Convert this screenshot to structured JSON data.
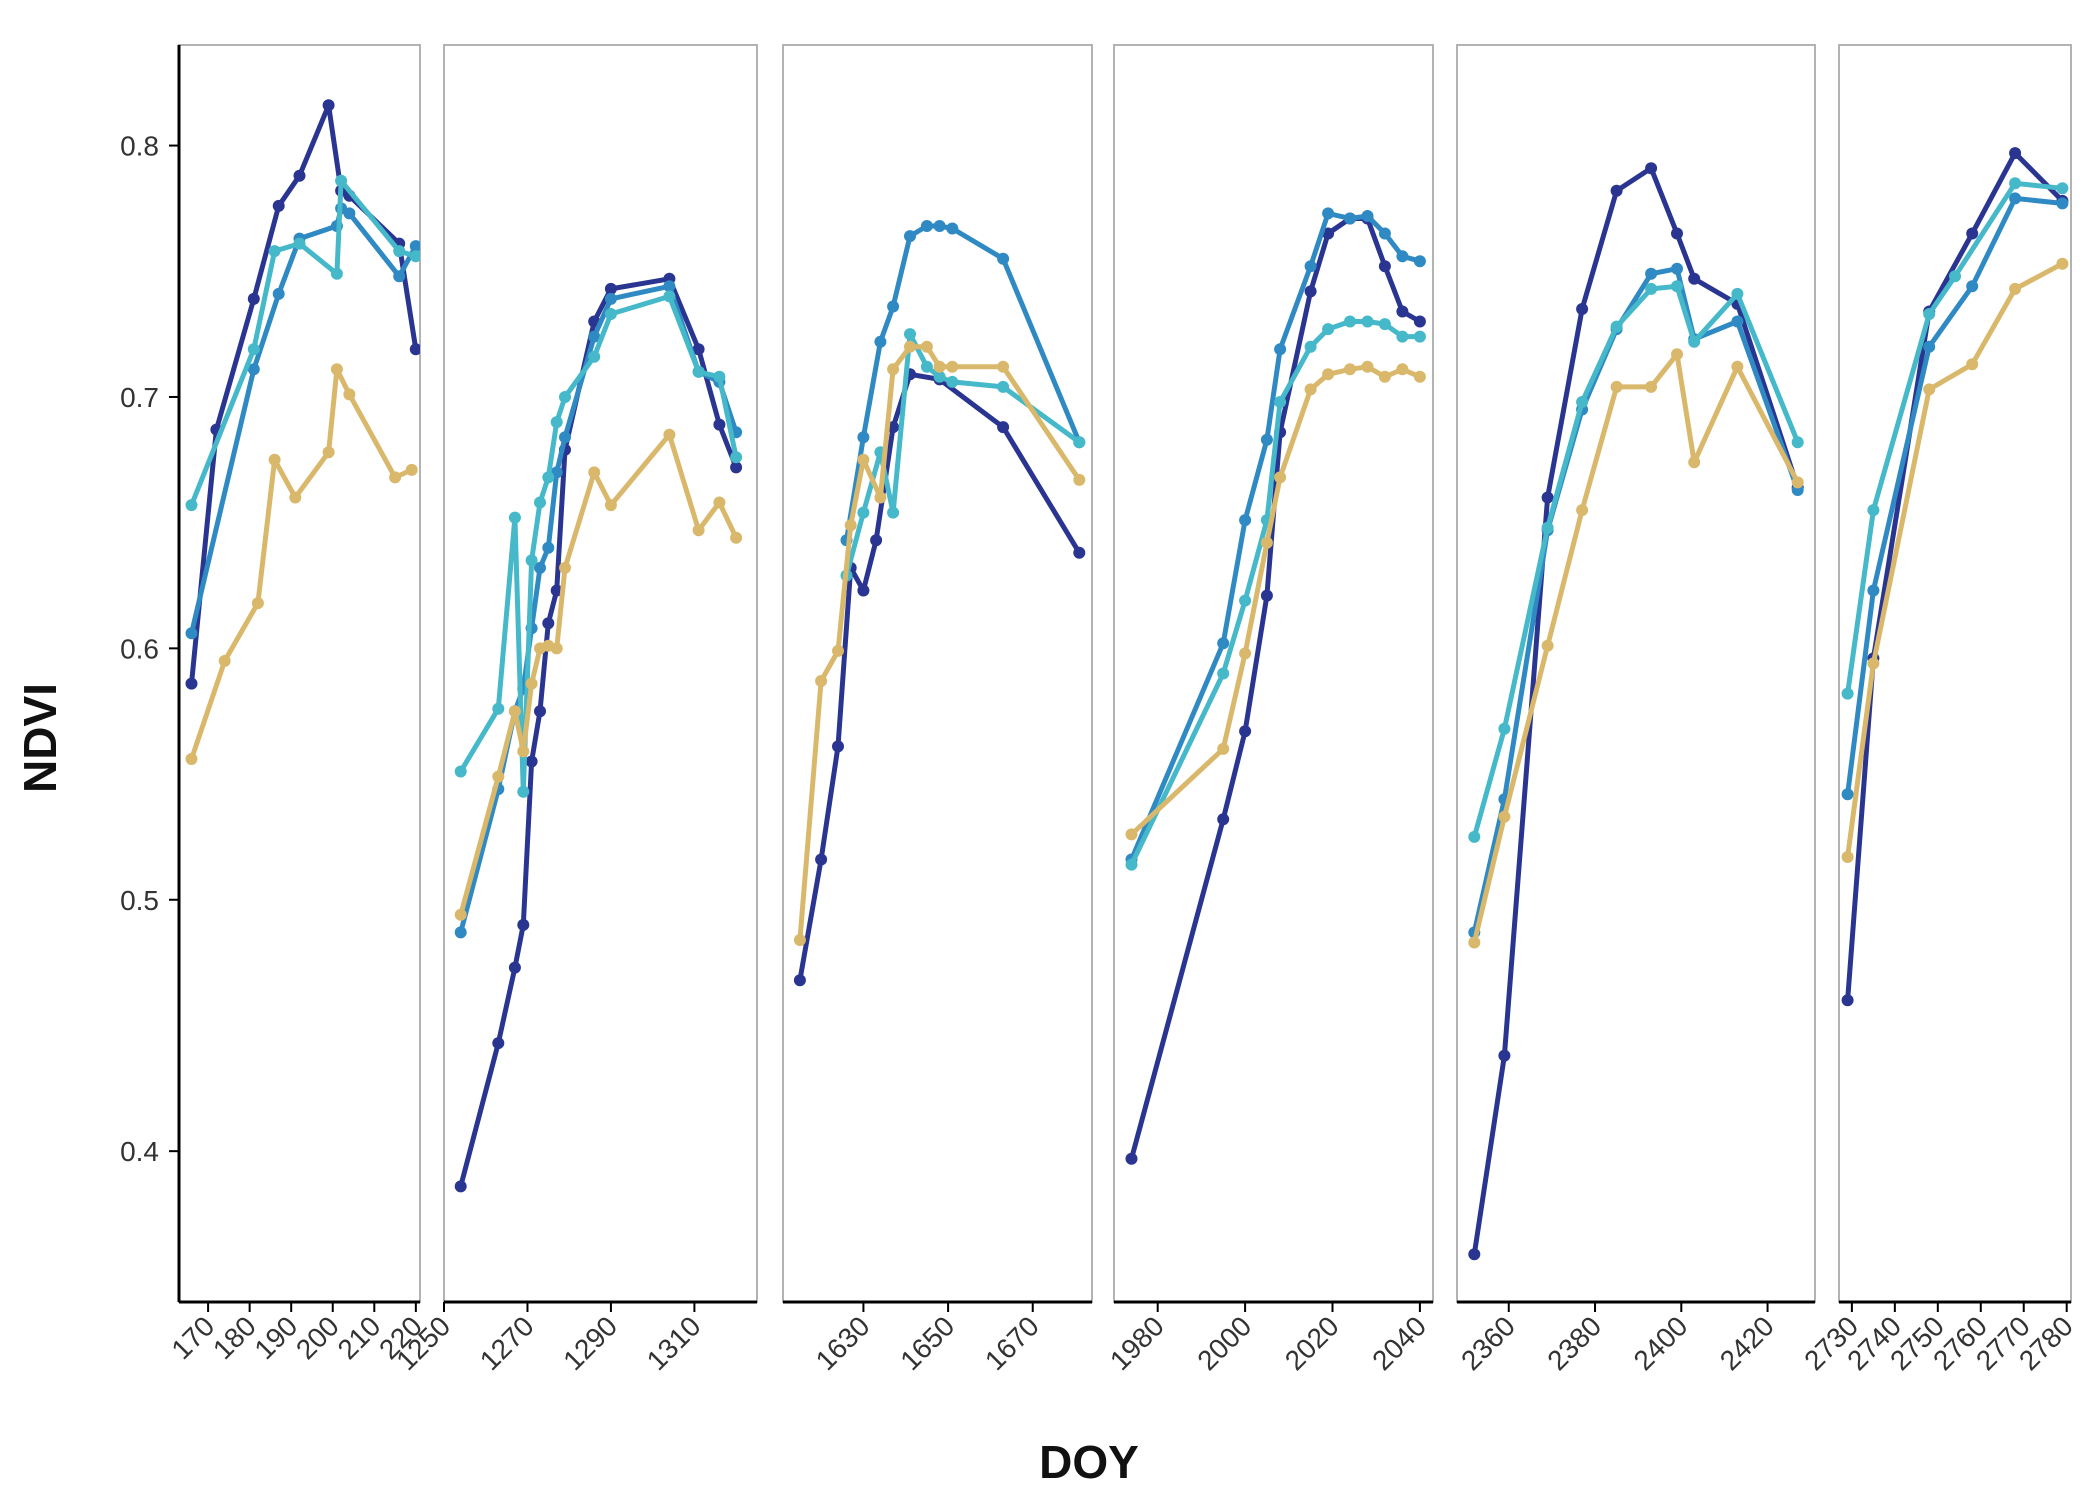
{
  "chart_data": {
    "type": "line",
    "xlabel": "DOY",
    "ylabel": "NDVI",
    "ylim": [
      0.34,
      0.84
    ],
    "yticks": [
      0.4,
      0.5,
      0.6,
      0.7,
      0.8
    ],
    "ytick_labels": [
      "0.4",
      "0.5",
      "0.6",
      "0.7",
      "0.8"
    ],
    "grid": false,
    "legend": "none",
    "series_colors": [
      "#2a3591",
      "#2f8ac4",
      "#45b8c9",
      "#d9b86c"
    ],
    "panels": [
      {
        "xlim": [
          163,
          221
        ],
        "xticks": [
          170,
          180,
          190,
          200,
          210,
          220
        ],
        "xtick_labels": [
          "170",
          "180",
          "190",
          "200",
          "210",
          "220"
        ],
        "series": [
          {
            "x": [
              166,
              172,
              181,
              187,
              192,
              199,
              202,
              204,
              216,
              220
            ],
            "y": [
              0.586,
              0.687,
              0.739,
              0.776,
              0.788,
              0.816,
              0.782,
              0.78,
              0.761,
              0.719
            ]
          },
          {
            "x": [
              166,
              181,
              187,
              192,
              201,
              202,
              204,
              216,
              220
            ],
            "y": [
              0.606,
              0.711,
              0.741,
              0.763,
              0.768,
              0.775,
              0.773,
              0.748,
              0.76
            ]
          },
          {
            "x": [
              166,
              181,
              186,
              192,
              201,
              202,
              216,
              220
            ],
            "y": [
              0.657,
              0.719,
              0.758,
              0.761,
              0.749,
              0.786,
              0.758,
              0.756
            ]
          },
          {
            "x": [
              166,
              174,
              182,
              186,
              191,
              199,
              201,
              204,
              215,
              219
            ],
            "y": [
              0.556,
              0.595,
              0.618,
              0.675,
              0.66,
              0.678,
              0.711,
              0.701,
              0.668,
              0.671
            ]
          }
        ]
      },
      {
        "xlim": [
          1250,
          1325
        ],
        "xticks": [
          1250,
          1270,
          1290,
          1310
        ],
        "xtick_labels": [
          "1250",
          "1270",
          "1290",
          "1310"
        ],
        "series": [
          {
            "x": [
              1254,
              1263,
              1267,
              1269,
              1271,
              1273,
              1275,
              1277,
              1279,
              1286,
              1290,
              1304,
              1311,
              1316,
              1320
            ],
            "y": [
              0.386,
              0.443,
              0.473,
              0.49,
              0.555,
              0.575,
              0.61,
              0.623,
              0.679,
              0.73,
              0.743,
              0.747,
              0.719,
              0.689,
              0.672
            ]
          },
          {
            "x": [
              1254,
              1263,
              1267,
              1269,
              1271,
              1273,
              1275,
              1277,
              1279,
              1286,
              1290,
              1304,
              1311,
              1316,
              1320
            ],
            "y": [
              0.487,
              0.544,
              0.575,
              0.584,
              0.608,
              0.632,
              0.64,
              0.67,
              0.684,
              0.724,
              0.739,
              0.744,
              0.71,
              0.706,
              0.686
            ]
          },
          {
            "x": [
              1254,
              1263,
              1267,
              1269,
              1271,
              1273,
              1275,
              1277,
              1279,
              1286,
              1290,
              1304,
              1311,
              1316,
              1320
            ],
            "y": [
              0.551,
              0.576,
              0.652,
              0.543,
              0.635,
              0.658,
              0.668,
              0.69,
              0.7,
              0.716,
              0.733,
              0.74,
              0.71,
              0.708,
              0.676
            ]
          },
          {
            "x": [
              1254,
              1263,
              1267,
              1269,
              1271,
              1273,
              1275,
              1277,
              1279,
              1286,
              1290,
              1304,
              1311,
              1316,
              1320
            ],
            "y": [
              0.494,
              0.549,
              0.575,
              0.559,
              0.586,
              0.6,
              0.601,
              0.6,
              0.632,
              0.67,
              0.657,
              0.685,
              0.647,
              0.658,
              0.644
            ]
          }
        ]
      },
      {
        "xlim": [
          1611,
          1684
        ],
        "xticks": [
          1630,
          1650,
          1670
        ],
        "xtick_labels": [
          "1630",
          "1650",
          "1670"
        ],
        "series": [
          {
            "x": [
              1615,
              1620,
              1624,
              1627,
              1630,
              1633,
              1637,
              1641,
              1648,
              1663,
              1681
            ],
            "y": [
              0.468,
              0.516,
              0.561,
              0.632,
              0.623,
              0.643,
              0.688,
              0.709,
              0.707,
              0.688,
              0.638
            ]
          },
          {
            "x": [
              1626,
              1630,
              1634,
              1637,
              1641,
              1645,
              1648,
              1651,
              1663,
              1681
            ],
            "y": [
              0.643,
              0.684,
              0.722,
              0.736,
              0.764,
              0.768,
              0.768,
              0.767,
              0.755,
              0.682
            ]
          },
          {
            "x": [
              1626,
              1630,
              1634,
              1637,
              1641,
              1645,
              1648,
              1651,
              1663,
              1681
            ],
            "y": [
              0.629,
              0.654,
              0.678,
              0.654,
              0.725,
              0.712,
              0.708,
              0.706,
              0.704,
              0.682
            ]
          },
          {
            "x": [
              1615,
              1620,
              1624,
              1627,
              1630,
              1634,
              1637,
              1641,
              1645,
              1648,
              1651,
              1663,
              1681
            ],
            "y": [
              0.484,
              0.587,
              0.599,
              0.649,
              0.675,
              0.66,
              0.711,
              0.72,
              0.72,
              0.712,
              0.712,
              0.712,
              0.667
            ]
          }
        ]
      },
      {
        "xlim": [
          1970,
          2043
        ],
        "xticks": [
          1980,
          2000,
          2020,
          2040
        ],
        "xtick_labels": [
          "1980",
          "2000",
          "2020",
          "2040"
        ],
        "series": [
          {
            "x": [
              1974,
              1995,
              2000,
              2005,
              2008,
              2015,
              2019,
              2024,
              2028,
              2032,
              2036,
              2040
            ],
            "y": [
              0.397,
              0.532,
              0.567,
              0.621,
              0.686,
              0.742,
              0.765,
              0.771,
              0.771,
              0.752,
              0.734,
              0.73
            ]
          },
          {
            "x": [
              1974,
              1995,
              2000,
              2005,
              2008,
              2015,
              2019,
              2024,
              2028,
              2032,
              2036,
              2040
            ],
            "y": [
              0.516,
              0.602,
              0.651,
              0.683,
              0.719,
              0.752,
              0.773,
              0.771,
              0.772,
              0.765,
              0.756,
              0.754
            ]
          },
          {
            "x": [
              1974,
              1995,
              2000,
              2005,
              2008,
              2015,
              2019,
              2024,
              2028,
              2032,
              2036,
              2040
            ],
            "y": [
              0.514,
              0.59,
              0.619,
              0.651,
              0.698,
              0.72,
              0.727,
              0.73,
              0.73,
              0.729,
              0.724,
              0.724
            ]
          },
          {
            "x": [
              1974,
              1995,
              2000,
              2005,
              2008,
              2015,
              2019,
              2024,
              2028,
              2032,
              2036,
              2040
            ],
            "y": [
              0.526,
              0.56,
              0.598,
              0.642,
              0.668,
              0.703,
              0.709,
              0.711,
              0.712,
              0.708,
              0.711,
              0.708
            ]
          }
        ]
      },
      {
        "xlim": [
          2348,
          2431
        ],
        "xticks": [
          2360,
          2380,
          2400,
          2420
        ],
        "xtick_labels": [
          "2360",
          "2380",
          "2400",
          "2420"
        ],
        "series": [
          {
            "x": [
              2352,
              2359,
              2369,
              2377,
              2385,
              2393,
              2399,
              2403,
              2413,
              2427
            ],
            "y": [
              0.359,
              0.438,
              0.66,
              0.735,
              0.782,
              0.791,
              0.765,
              0.747,
              0.737,
              0.664
            ]
          },
          {
            "x": [
              2352,
              2359,
              2369,
              2377,
              2385,
              2393,
              2399,
              2403,
              2413,
              2427
            ],
            "y": [
              0.487,
              0.54,
              0.647,
              0.695,
              0.727,
              0.749,
              0.751,
              0.723,
              0.73,
              0.663
            ]
          },
          {
            "x": [
              2352,
              2359,
              2369,
              2377,
              2385,
              2393,
              2399,
              2403,
              2413,
              2427
            ],
            "y": [
              0.525,
              0.568,
              0.648,
              0.698,
              0.728,
              0.743,
              0.744,
              0.722,
              0.741,
              0.682
            ]
          },
          {
            "x": [
              2352,
              2359,
              2369,
              2377,
              2385,
              2393,
              2399,
              2403,
              2413,
              2427
            ],
            "y": [
              0.483,
              0.533,
              0.601,
              0.655,
              0.704,
              0.704,
              0.717,
              0.674,
              0.712,
              0.666
            ]
          }
        ]
      },
      {
        "xlim": [
          2727,
          2781
        ],
        "xticks": [
          2730,
          2740,
          2750,
          2760,
          2770,
          2780
        ],
        "xtick_labels": [
          "2730",
          "2740",
          "2750",
          "2760",
          "2770",
          "2780"
        ],
        "series": [
          {
            "x": [
              2729,
              2735,
              2748,
              2758,
              2768,
              2779
            ],
            "y": [
              0.46,
              0.596,
              0.734,
              0.765,
              0.797,
              0.778
            ]
          },
          {
            "x": [
              2729,
              2735,
              2748,
              2758,
              2768,
              2779
            ],
            "y": [
              0.542,
              0.623,
              0.72,
              0.744,
              0.779,
              0.777
            ]
          },
          {
            "x": [
              2729,
              2735,
              2748,
              2754,
              2768,
              2779
            ],
            "y": [
              0.582,
              0.655,
              0.733,
              0.748,
              0.785,
              0.783
            ]
          },
          {
            "x": [
              2729,
              2735,
              2748,
              2758,
              2768,
              2779
            ],
            "y": [
              0.517,
              0.594,
              0.703,
              0.713,
              0.743,
              0.753
            ]
          }
        ]
      }
    ]
  }
}
